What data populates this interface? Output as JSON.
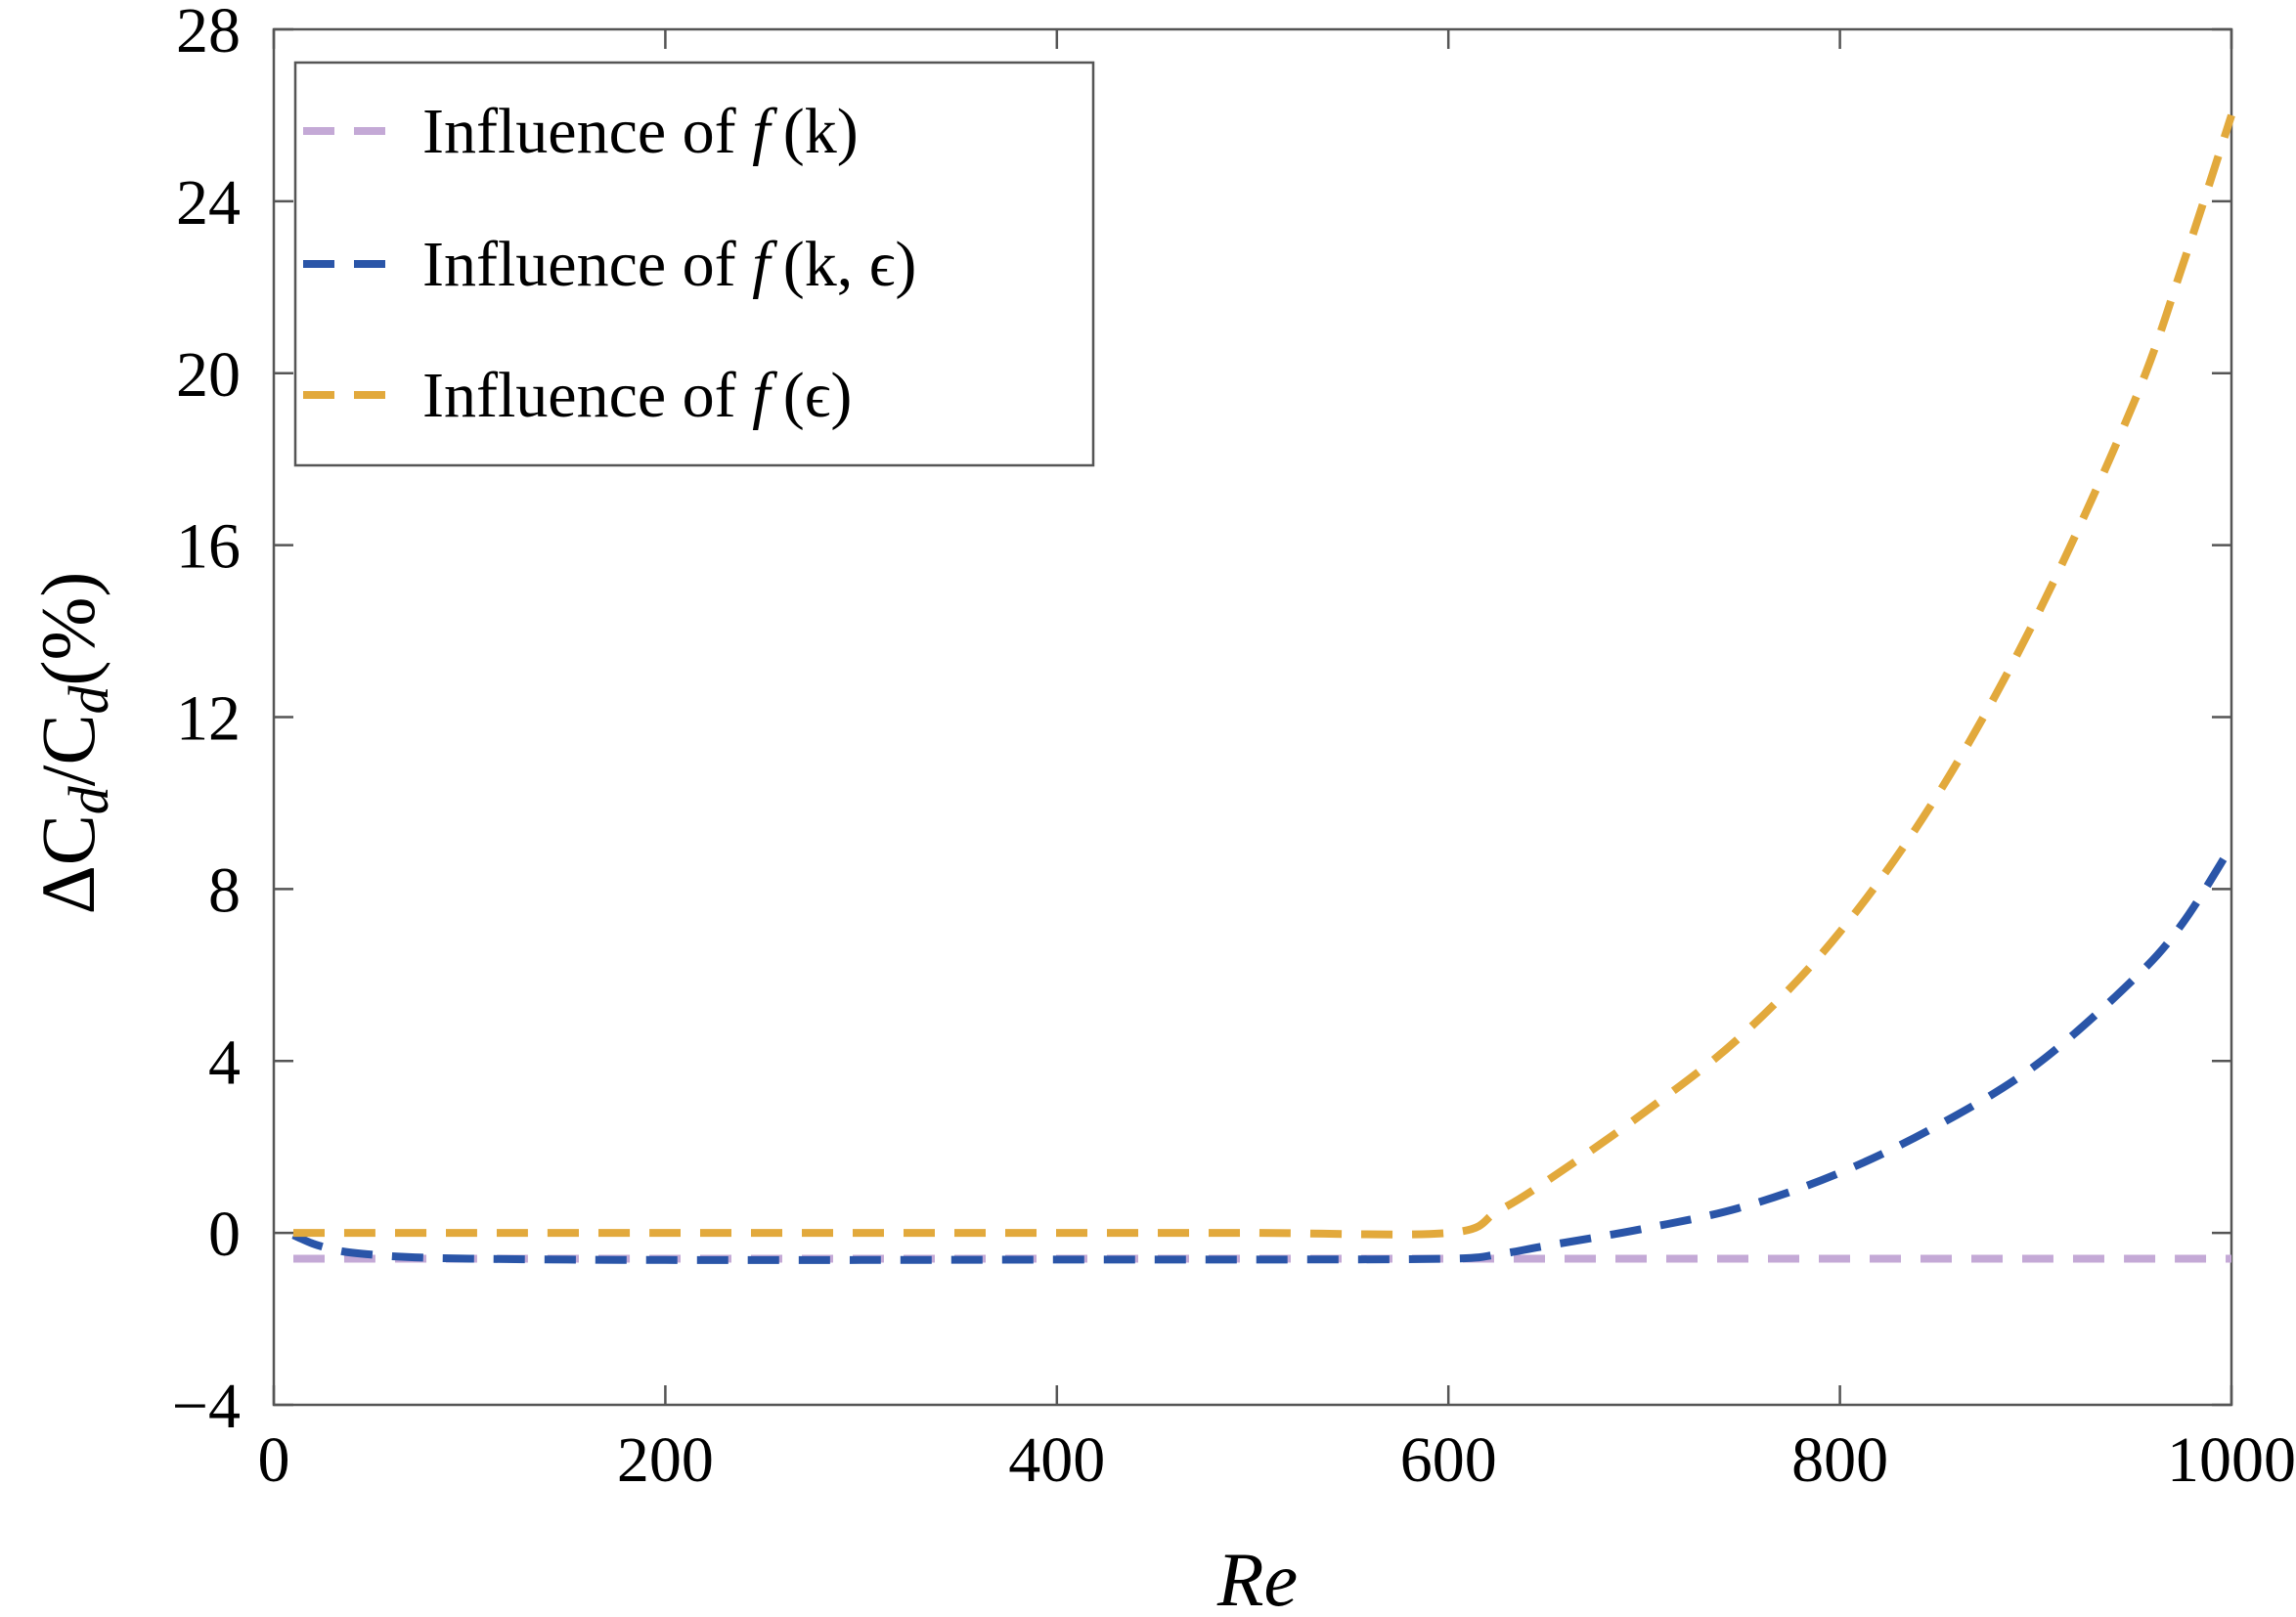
{
  "chart_data": {
    "type": "line",
    "xlabel": "Re",
    "ylabel_parts": [
      "ΔC",
      "d",
      "/C",
      "d",
      "(%)"
    ],
    "xlim": [
      0,
      1000
    ],
    "ylim": [
      -4,
      28
    ],
    "x_ticks": [
      0,
      200,
      400,
      600,
      800,
      1000
    ],
    "y_ticks": [
      -4,
      0,
      4,
      8,
      12,
      16,
      20,
      24,
      28
    ],
    "x_tick_labels": [
      "0",
      "200",
      "400",
      "600",
      "800",
      "1000"
    ],
    "y_tick_labels": [
      "−4",
      "0",
      "4",
      "8",
      "12",
      "16",
      "20",
      "24",
      "28"
    ],
    "grid": false,
    "legend_position": "top-left",
    "series": [
      {
        "legend_prefix": "Influence of ",
        "legend_func": "f",
        "legend_args": "(k)",
        "color": "#c4a9d6",
        "dash": "dashed",
        "points": [
          [
            10,
            -0.6
          ],
          [
            100,
            -0.6
          ],
          [
            200,
            -0.6
          ],
          [
            300,
            -0.6
          ],
          [
            400,
            -0.6
          ],
          [
            500,
            -0.6
          ],
          [
            600,
            -0.6
          ],
          [
            700,
            -0.6
          ],
          [
            800,
            -0.6
          ],
          [
            900,
            -0.6
          ],
          [
            1000,
            -0.6
          ]
        ]
      },
      {
        "legend_prefix": "Influence of ",
        "legend_func": "f",
        "legend_args": "(k, ϵ)",
        "color": "#2a55a8",
        "dash": "dashed",
        "points": [
          [
            10,
            -0.05
          ],
          [
            20,
            -0.25
          ],
          [
            30,
            -0.38
          ],
          [
            40,
            -0.46
          ],
          [
            60,
            -0.54
          ],
          [
            80,
            -0.58
          ],
          [
            100,
            -0.6
          ],
          [
            150,
            -0.62
          ],
          [
            200,
            -0.63
          ],
          [
            300,
            -0.63
          ],
          [
            400,
            -0.62
          ],
          [
            500,
            -0.62
          ],
          [
            600,
            -0.6
          ],
          [
            625,
            -0.5
          ],
          [
            650,
            -0.3
          ],
          [
            700,
            0.1
          ],
          [
            750,
            0.6
          ],
          [
            800,
            1.4
          ],
          [
            850,
            2.5
          ],
          [
            900,
            3.9
          ],
          [
            950,
            5.9
          ],
          [
            975,
            7.2
          ],
          [
            1000,
            9.0
          ]
        ]
      },
      {
        "legend_prefix": "Influence of ",
        "legend_func": "f",
        "legend_args": "(ϵ)",
        "color": "#e2a93c",
        "dash": "dashed",
        "points": [
          [
            10,
            0
          ],
          [
            100,
            0
          ],
          [
            200,
            0
          ],
          [
            300,
            0
          ],
          [
            400,
            0
          ],
          [
            500,
            0
          ],
          [
            600,
            0
          ],
          [
            625,
            0.5
          ],
          [
            650,
            1.2
          ],
          [
            700,
            2.8
          ],
          [
            750,
            4.6
          ],
          [
            800,
            7.0
          ],
          [
            850,
            10.2
          ],
          [
            900,
            14.3
          ],
          [
            950,
            19.3
          ],
          [
            975,
            22.5
          ],
          [
            1000,
            26.0
          ]
        ]
      }
    ]
  }
}
